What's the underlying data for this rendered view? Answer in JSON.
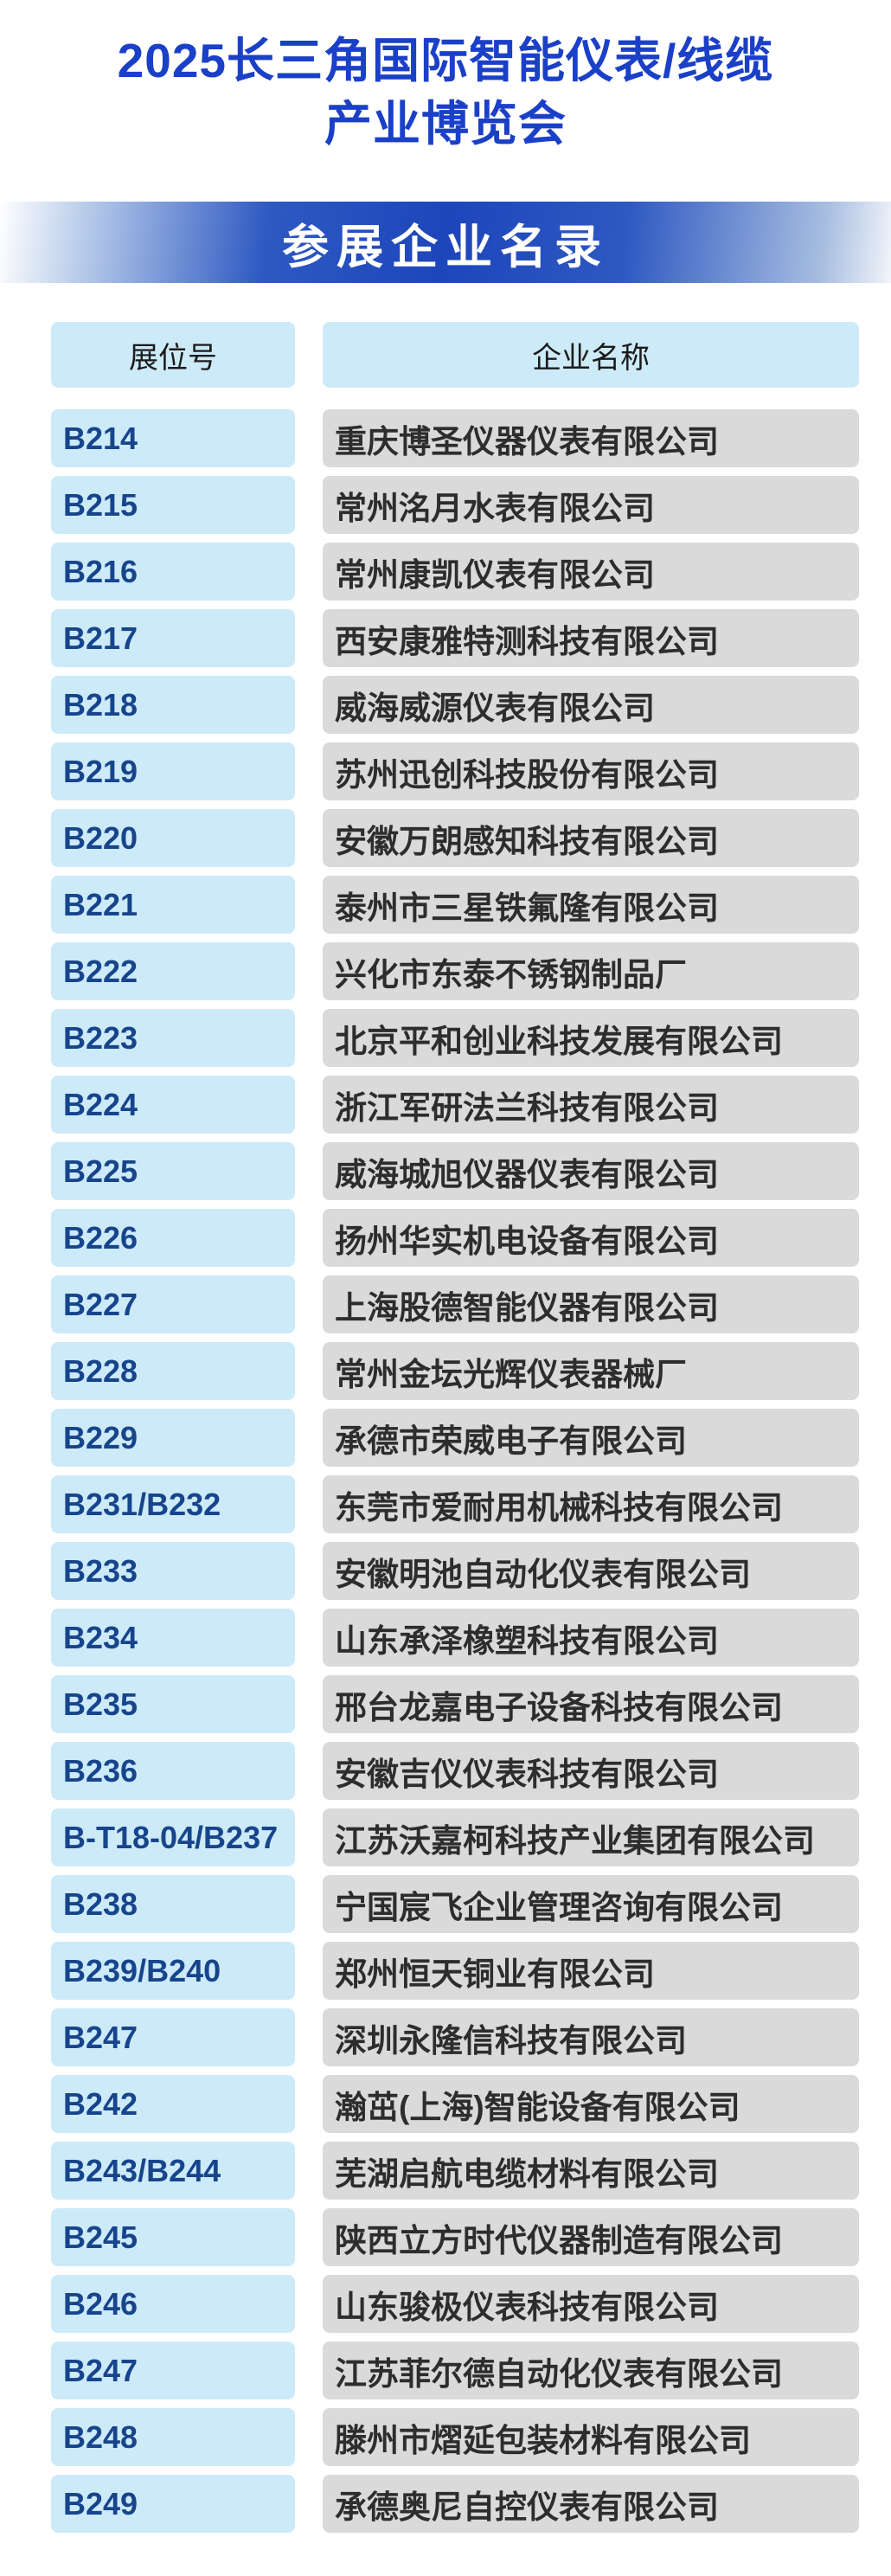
{
  "page": {
    "title_line1": "2025长三角国际智能仪表/线缆",
    "title_line2": "产业博览会",
    "banner": "参展企业名录"
  },
  "colors": {
    "title_blue": "#1b40c8",
    "banner_blue": "#1d46bb",
    "booth_bg": "#cdeaf9",
    "booth_text": "#17458c",
    "company_bg": "#d9dad9",
    "company_text": "#2d2d2d"
  },
  "table": {
    "headers": {
      "booth": "展位号",
      "company": "企业名称"
    },
    "rows": [
      {
        "booth": "B214",
        "company": "重庆博圣仪器仪表有限公司"
      },
      {
        "booth": "B215",
        "company": "常州洺月水表有限公司"
      },
      {
        "booth": "B216",
        "company": "常州康凯仪表有限公司"
      },
      {
        "booth": "B217",
        "company": "西安康雅特测科技有限公司"
      },
      {
        "booth": "B218",
        "company": "威海威源仪表有限公司"
      },
      {
        "booth": "B219",
        "company": "苏州迅创科技股份有限公司"
      },
      {
        "booth": "B220",
        "company": "安徽万朗感知科技有限公司"
      },
      {
        "booth": "B221",
        "company": "泰州市三星铁氟隆有限公司"
      },
      {
        "booth": "B222",
        "company": "兴化市东泰不锈钢制品厂"
      },
      {
        "booth": "B223",
        "company": "北京平和创业科技发展有限公司"
      },
      {
        "booth": "B224",
        "company": "浙江军研法兰科技有限公司"
      },
      {
        "booth": "B225",
        "company": "威海城旭仪器仪表有限公司"
      },
      {
        "booth": "B226",
        "company": "扬州华实机电设备有限公司"
      },
      {
        "booth": "B227",
        "company": "上海股德智能仪器有限公司"
      },
      {
        "booth": "B228",
        "company": "常州金坛光辉仪表器械厂"
      },
      {
        "booth": "B229",
        "company": "承德市荣威电子有限公司"
      },
      {
        "booth": "B231/B232",
        "company": "东莞市爱耐用机械科技有限公司"
      },
      {
        "booth": "B233",
        "company": "安徽明池自动化仪表有限公司"
      },
      {
        "booth": "B234",
        "company": "山东承泽橡塑科技有限公司"
      },
      {
        "booth": "B235",
        "company": "邢台龙嘉电子设备科技有限公司"
      },
      {
        "booth": "B236",
        "company": "安徽吉仪仪表科技有限公司"
      },
      {
        "booth": "B-T18-04/B237",
        "company": "江苏沃嘉柯科技产业集团有限公司"
      },
      {
        "booth": "B238",
        "company": "宁国宸飞企业管理咨询有限公司"
      },
      {
        "booth": "B239/B240",
        "company": "郑州恒天铜业有限公司"
      },
      {
        "booth": "B247",
        "company": "深圳永隆信科技有限公司"
      },
      {
        "booth": "B242",
        "company": "瀚茁(上海)智能设备有限公司"
      },
      {
        "booth": "B243/B244",
        "company": "芜湖启航电缆材料有限公司"
      },
      {
        "booth": "B245",
        "company": "陕西立方时代仪器制造有限公司"
      },
      {
        "booth": "B246",
        "company": "山东骏极仪表科技有限公司"
      },
      {
        "booth": "B247",
        "company": "江苏菲尔德自动化仪表有限公司"
      },
      {
        "booth": "B248",
        "company": "滕州市熠延包装材料有限公司"
      },
      {
        "booth": "B249",
        "company": "承德奥尼自控仪表有限公司"
      }
    ]
  }
}
